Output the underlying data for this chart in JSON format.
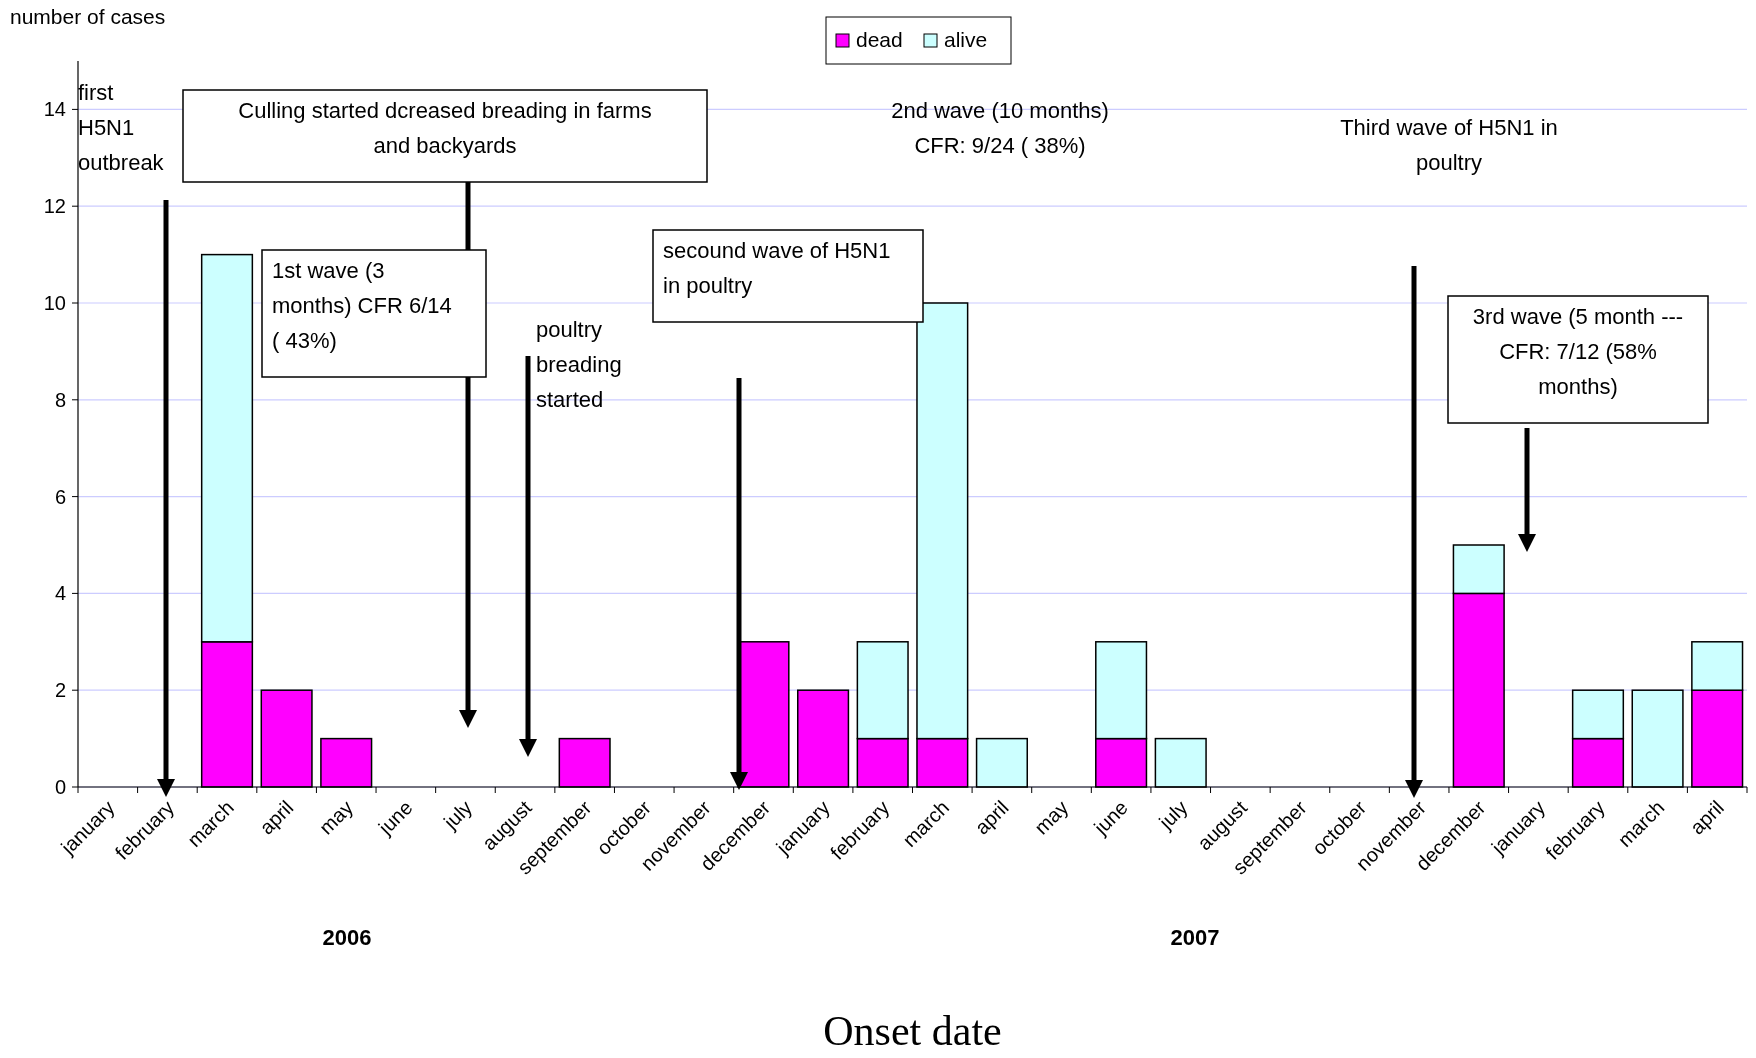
{
  "chart_data": {
    "type": "bar",
    "stacked": true,
    "ylabel": "number of cases",
    "xlabel": "Onset date",
    "categories": [
      "january",
      "february",
      "march",
      "april",
      "may",
      "june",
      "july",
      "august",
      "september",
      "october",
      "november",
      "december",
      "january",
      "february",
      "march",
      "april",
      "may",
      "june",
      "july",
      "august",
      "september",
      "october",
      "november",
      "december",
      "january",
      "february",
      "march",
      "april"
    ],
    "series": [
      {
        "name": "dead",
        "color": "#ff00ff",
        "values": [
          0,
          0,
          3,
          2,
          1,
          0,
          0,
          0,
          1,
          0,
          0,
          3,
          2,
          1,
          1,
          0,
          0,
          1,
          0,
          0,
          0,
          0,
          0,
          4,
          0,
          1,
          0,
          2
        ]
      },
      {
        "name": "alive",
        "color": "#ccffff",
        "values": [
          0,
          0,
          8,
          0,
          0,
          0,
          0,
          0,
          0,
          0,
          0,
          0,
          0,
          2,
          9,
          1,
          0,
          2,
          1,
          0,
          0,
          0,
          0,
          1,
          0,
          1,
          2,
          1
        ]
      }
    ],
    "ylim": [
      0,
      15
    ],
    "yticks": [
      0,
      2,
      4,
      6,
      8,
      10,
      12,
      14
    ],
    "grid": "y",
    "legend": "top",
    "annotations": [
      "first H5N1 outbreak",
      "Culling started dcreased breading in farms and backyards",
      "1st wave (3 months) CFR 6/14 ( 43%)",
      "poultry breading started",
      "secound wave of H5N1 in poultry",
      "2nd wave (10 months) CFR: 9/24 ( 38%)",
      "Third wave of H5N1 in poultry",
      "3rd wave (5 month --- CFR: 7/12 (58% months)",
      "2006",
      "2007"
    ]
  }
}
